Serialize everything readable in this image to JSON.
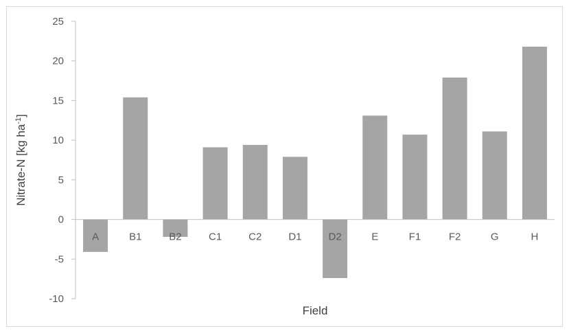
{
  "chart_data": {
    "type": "bar",
    "title": "",
    "xlabel": "Field",
    "ylabel_main": "Nitrate-N [kg ha",
    "ylabel_sup": "-1",
    "ylabel_end": "]",
    "ylim": [
      -10,
      25
    ],
    "yticks": [
      -10,
      -5,
      0,
      5,
      10,
      15,
      20,
      25
    ],
    "grid": false,
    "categories": [
      "A",
      "B1",
      "B2",
      "C1",
      "C2",
      "D1",
      "D2",
      "E",
      "F1",
      "F2",
      "G",
      "H"
    ],
    "values": [
      -4.1,
      15.4,
      -2.2,
      9.1,
      9.4,
      7.9,
      -7.4,
      13.1,
      10.7,
      17.9,
      11.1,
      21.8
    ],
    "bar_color": "#a5a5a5",
    "axis_color": "#bfbfbf"
  }
}
